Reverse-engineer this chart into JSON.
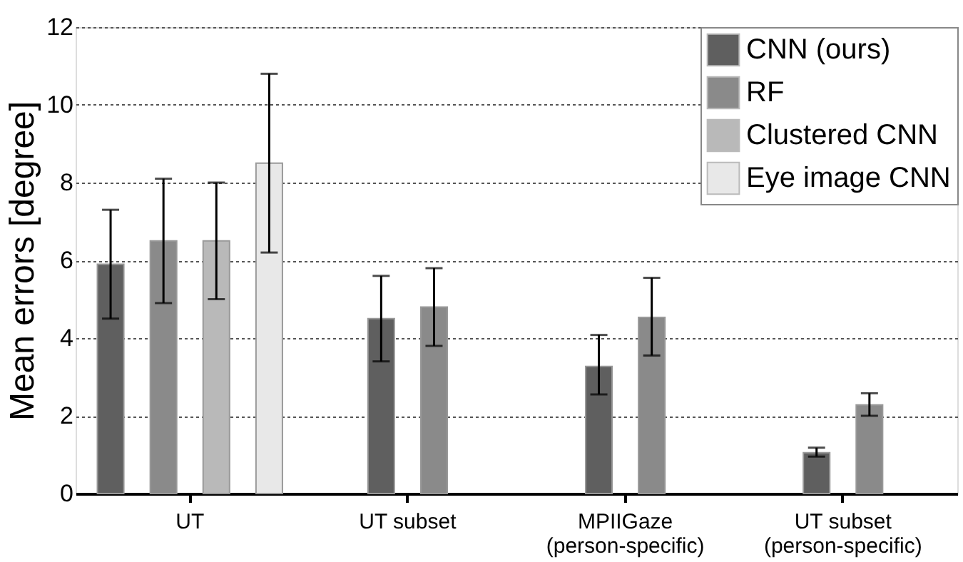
{
  "chart_data": {
    "type": "bar",
    "ylabel": "Mean errors [degree]",
    "categories": [
      "UT",
      "UT subset",
      "MPIIGaze\n(person-specific)",
      "UT subset\n(person-specific)"
    ],
    "series": [
      {
        "name": "CNN (ours)",
        "color": "#5f5f5f",
        "values": [
          5.9,
          4.5,
          3.27,
          1.05
        ],
        "errors": [
          [
            4.5,
            7.3
          ],
          [
            3.4,
            5.6
          ],
          [
            2.55,
            4.08
          ],
          [
            0.95,
            1.18
          ]
        ]
      },
      {
        "name": "RF",
        "color": "#8a8a8a",
        "values": [
          6.5,
          4.8,
          4.53,
          2.28
        ],
        "errors": [
          [
            4.9,
            8.1
          ],
          [
            3.8,
            5.8
          ],
          [
            3.55,
            5.55
          ],
          [
            2.0,
            2.58
          ]
        ]
      },
      {
        "name": "Clustered CNN",
        "color": "#b9b9b9",
        "values": [
          6.5,
          null,
          null,
          null
        ],
        "errors": [
          [
            5.0,
            8.0
          ],
          null,
          null,
          null
        ]
      },
      {
        "name": "Eye image CNN",
        "color": "#e8e8e8",
        "values": [
          8.5,
          null,
          null,
          null
        ],
        "errors": [
          [
            6.2,
            10.8
          ],
          null,
          null,
          null
        ]
      }
    ],
    "ylim": [
      0,
      12
    ],
    "yticks": [
      0,
      2,
      4,
      6,
      8,
      10,
      12
    ],
    "grid": "y",
    "legend": "top right"
  }
}
